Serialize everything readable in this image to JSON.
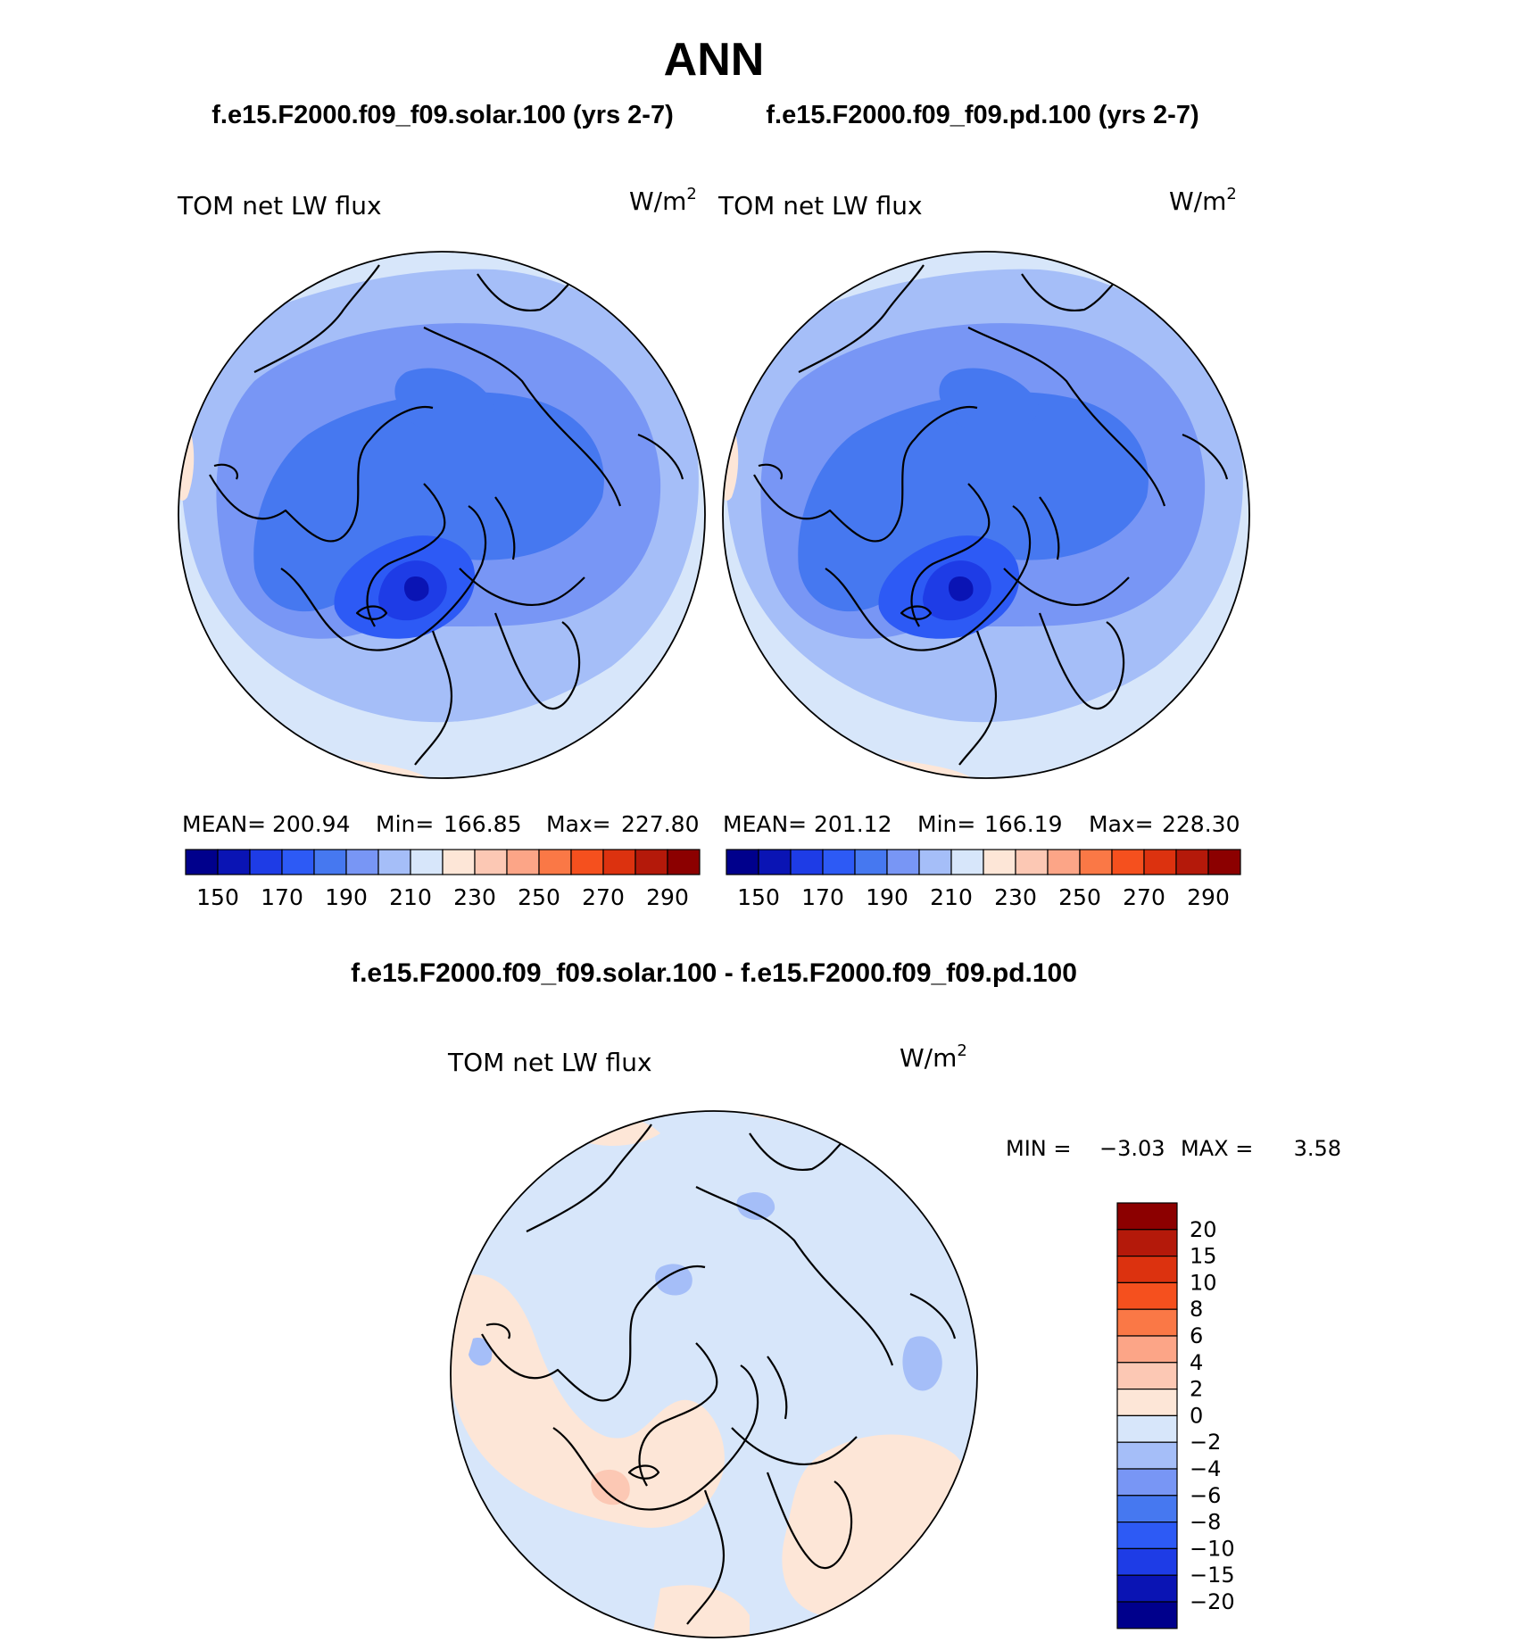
{
  "page_title": "ANN",
  "palette": [
    "#00008c",
    "#0a14b4",
    "#1e3ce6",
    "#2d5af5",
    "#4678f0",
    "#7896f5",
    "#a5bef8",
    "#d7e6fa",
    "#fde6d7",
    "#fcc8b4",
    "#fca587",
    "#fa7846",
    "#f5501e",
    "#dc320f",
    "#b4190a",
    "#8c0000"
  ],
  "chart_data": [
    {
      "type": "heatmap",
      "projection": "north-polar-stereographic",
      "case_title": "f.e15.F2000.f09_f09.solar.100 (yrs 2-7)",
      "variable": "TOM net LW flux",
      "units": "W/m",
      "units_exp": "2",
      "stats": {
        "mean_label": "MEAN=",
        "mean": "200.94",
        "min_label": "Min=",
        "min": "166.85",
        "max_label": "Max=",
        "max": "227.80"
      },
      "colorbar": {
        "orientation": "horizontal",
        "levels": [
          150,
          160,
          170,
          180,
          190,
          200,
          210,
          220,
          230,
          240,
          250,
          260,
          270,
          280,
          290
        ],
        "tick_labels": [
          "150",
          "170",
          "190",
          "210",
          "230",
          "250",
          "270",
          "290"
        ]
      }
    },
    {
      "type": "heatmap",
      "projection": "north-polar-stereographic",
      "case_title": "f.e15.F2000.f09_f09.pd.100 (yrs 2-7)",
      "variable": "TOM net LW flux",
      "units": "W/m",
      "units_exp": "2",
      "stats": {
        "mean_label": "MEAN=",
        "mean": "201.12",
        "min_label": "Min=",
        "min": "166.19",
        "max_label": "Max=",
        "max": "228.30"
      },
      "colorbar": {
        "orientation": "horizontal",
        "levels": [
          150,
          160,
          170,
          180,
          190,
          200,
          210,
          220,
          230,
          240,
          250,
          260,
          270,
          280,
          290
        ],
        "tick_labels": [
          "150",
          "170",
          "190",
          "210",
          "230",
          "250",
          "270",
          "290"
        ]
      }
    },
    {
      "type": "heatmap",
      "projection": "north-polar-stereographic",
      "case_title": "f.e15.F2000.f09_f09.solar.100 - f.e15.F2000.f09_f09.pd.100",
      "variable": "TOM net LW flux",
      "units": "W/m",
      "units_exp": "2",
      "stats": {
        "min_label": "MIN =",
        "min": "−3.03",
        "max_label": "MAX =",
        "max": "3.58"
      },
      "colorbar": {
        "orientation": "vertical",
        "levels": [
          -20,
          -15,
          -10,
          -8,
          -6,
          -4,
          -2,
          0,
          2,
          4,
          6,
          8,
          10,
          15,
          20
        ],
        "tick_labels": [
          "20",
          "15",
          "10",
          "8",
          "6",
          "4",
          "2",
          "0",
          "−2",
          "−4",
          "−6",
          "−8",
          "−10",
          "−15",
          "−20"
        ]
      }
    }
  ]
}
